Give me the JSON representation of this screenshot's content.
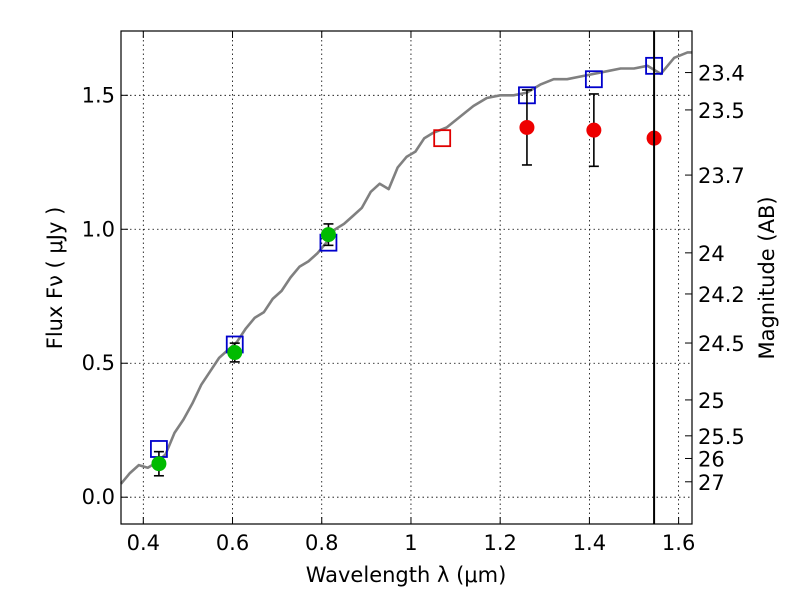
{
  "chart_data": {
    "type": "scatter",
    "xlabel": "Wavelength  λ (μm)",
    "ylabel": "Flux  Fν  ( μJy )",
    "y2label": "Magnitude (AB)",
    "xlim": [
      0.35,
      1.63
    ],
    "ylim": [
      -0.1,
      1.74
    ],
    "grid": true,
    "x_ticks": [
      {
        "value": 0.4,
        "label": "0.4"
      },
      {
        "value": 0.6,
        "label": "0.6"
      },
      {
        "value": 0.8,
        "label": "0.8"
      },
      {
        "value": 1.0,
        "label": "1"
      },
      {
        "value": 1.2,
        "label": "1.2"
      },
      {
        "value": 1.4,
        "label": "1.4"
      },
      {
        "value": 1.6,
        "label": "1.6"
      }
    ],
    "y_ticks": [
      {
        "value": 0.0,
        "label": "0.0"
      },
      {
        "value": 0.5,
        "label": "0.5"
      },
      {
        "value": 1.0,
        "label": "1.0"
      },
      {
        "value": 1.5,
        "label": "1.5"
      }
    ],
    "mag_ticks": [
      {
        "value": 23.4,
        "label": "23.4"
      },
      {
        "value": 23.5,
        "label": "23.5"
      },
      {
        "value": 23.7,
        "label": "23.7"
      },
      {
        "value": 24.0,
        "label": "24"
      },
      {
        "value": 24.2,
        "label": "24.2"
      },
      {
        "value": 24.5,
        "label": "24.5"
      },
      {
        "value": 25.0,
        "label": "25"
      },
      {
        "value": 25.5,
        "label": "25.5"
      },
      {
        "value": 26.0,
        "label": "26"
      },
      {
        "value": 27.0,
        "label": "27"
      }
    ],
    "vline_x": 1.545,
    "sed_model": {
      "color": "#808080",
      "x": [
        0.35,
        0.37,
        0.39,
        0.41,
        0.43,
        0.45,
        0.47,
        0.49,
        0.51,
        0.53,
        0.55,
        0.57,
        0.59,
        0.61,
        0.63,
        0.65,
        0.67,
        0.69,
        0.71,
        0.73,
        0.75,
        0.77,
        0.79,
        0.81,
        0.83,
        0.85,
        0.87,
        0.89,
        0.91,
        0.93,
        0.95,
        0.97,
        0.99,
        1.01,
        1.03,
        1.05,
        1.08,
        1.11,
        1.14,
        1.17,
        1.2,
        1.23,
        1.26,
        1.29,
        1.32,
        1.35,
        1.38,
        1.41,
        1.44,
        1.47,
        1.5,
        1.53,
        1.56,
        1.59,
        1.62,
        1.63
      ],
      "y": [
        0.05,
        0.09,
        0.12,
        0.11,
        0.13,
        0.16,
        0.24,
        0.29,
        0.35,
        0.42,
        0.47,
        0.52,
        0.55,
        0.58,
        0.63,
        0.67,
        0.69,
        0.74,
        0.77,
        0.82,
        0.86,
        0.88,
        0.91,
        0.95,
        1.0,
        1.02,
        1.05,
        1.08,
        1.14,
        1.17,
        1.15,
        1.23,
        1.27,
        1.29,
        1.34,
        1.36,
        1.38,
        1.42,
        1.46,
        1.49,
        1.5,
        1.5,
        1.51,
        1.54,
        1.56,
        1.56,
        1.57,
        1.58,
        1.59,
        1.6,
        1.6,
        1.61,
        1.58,
        1.64,
        1.66,
        1.66
      ]
    },
    "series": [
      {
        "marker": "square-open",
        "color": "#0000cc",
        "x": [
          0.435,
          0.605,
          0.815,
          1.26,
          1.41,
          1.545
        ],
        "y": [
          0.18,
          0.57,
          0.95,
          1.5,
          1.56,
          1.61
        ]
      },
      {
        "marker": "square-open",
        "color": "#e00000",
        "x": [
          1.07
        ],
        "y": [
          1.34
        ]
      },
      {
        "marker": "circle",
        "color": "#00bb00",
        "x": [
          0.435,
          0.605,
          0.815
        ],
        "y": [
          0.125,
          0.54,
          0.98
        ],
        "yerr": [
          0.045,
          0.035,
          0.04
        ]
      },
      {
        "marker": "circle",
        "color": "#ee0000",
        "x": [
          1.26,
          1.41,
          1.545
        ],
        "y": [
          1.38,
          1.37,
          1.34
        ],
        "yerr": [
          0.14,
          0.135,
          0
        ]
      }
    ]
  }
}
